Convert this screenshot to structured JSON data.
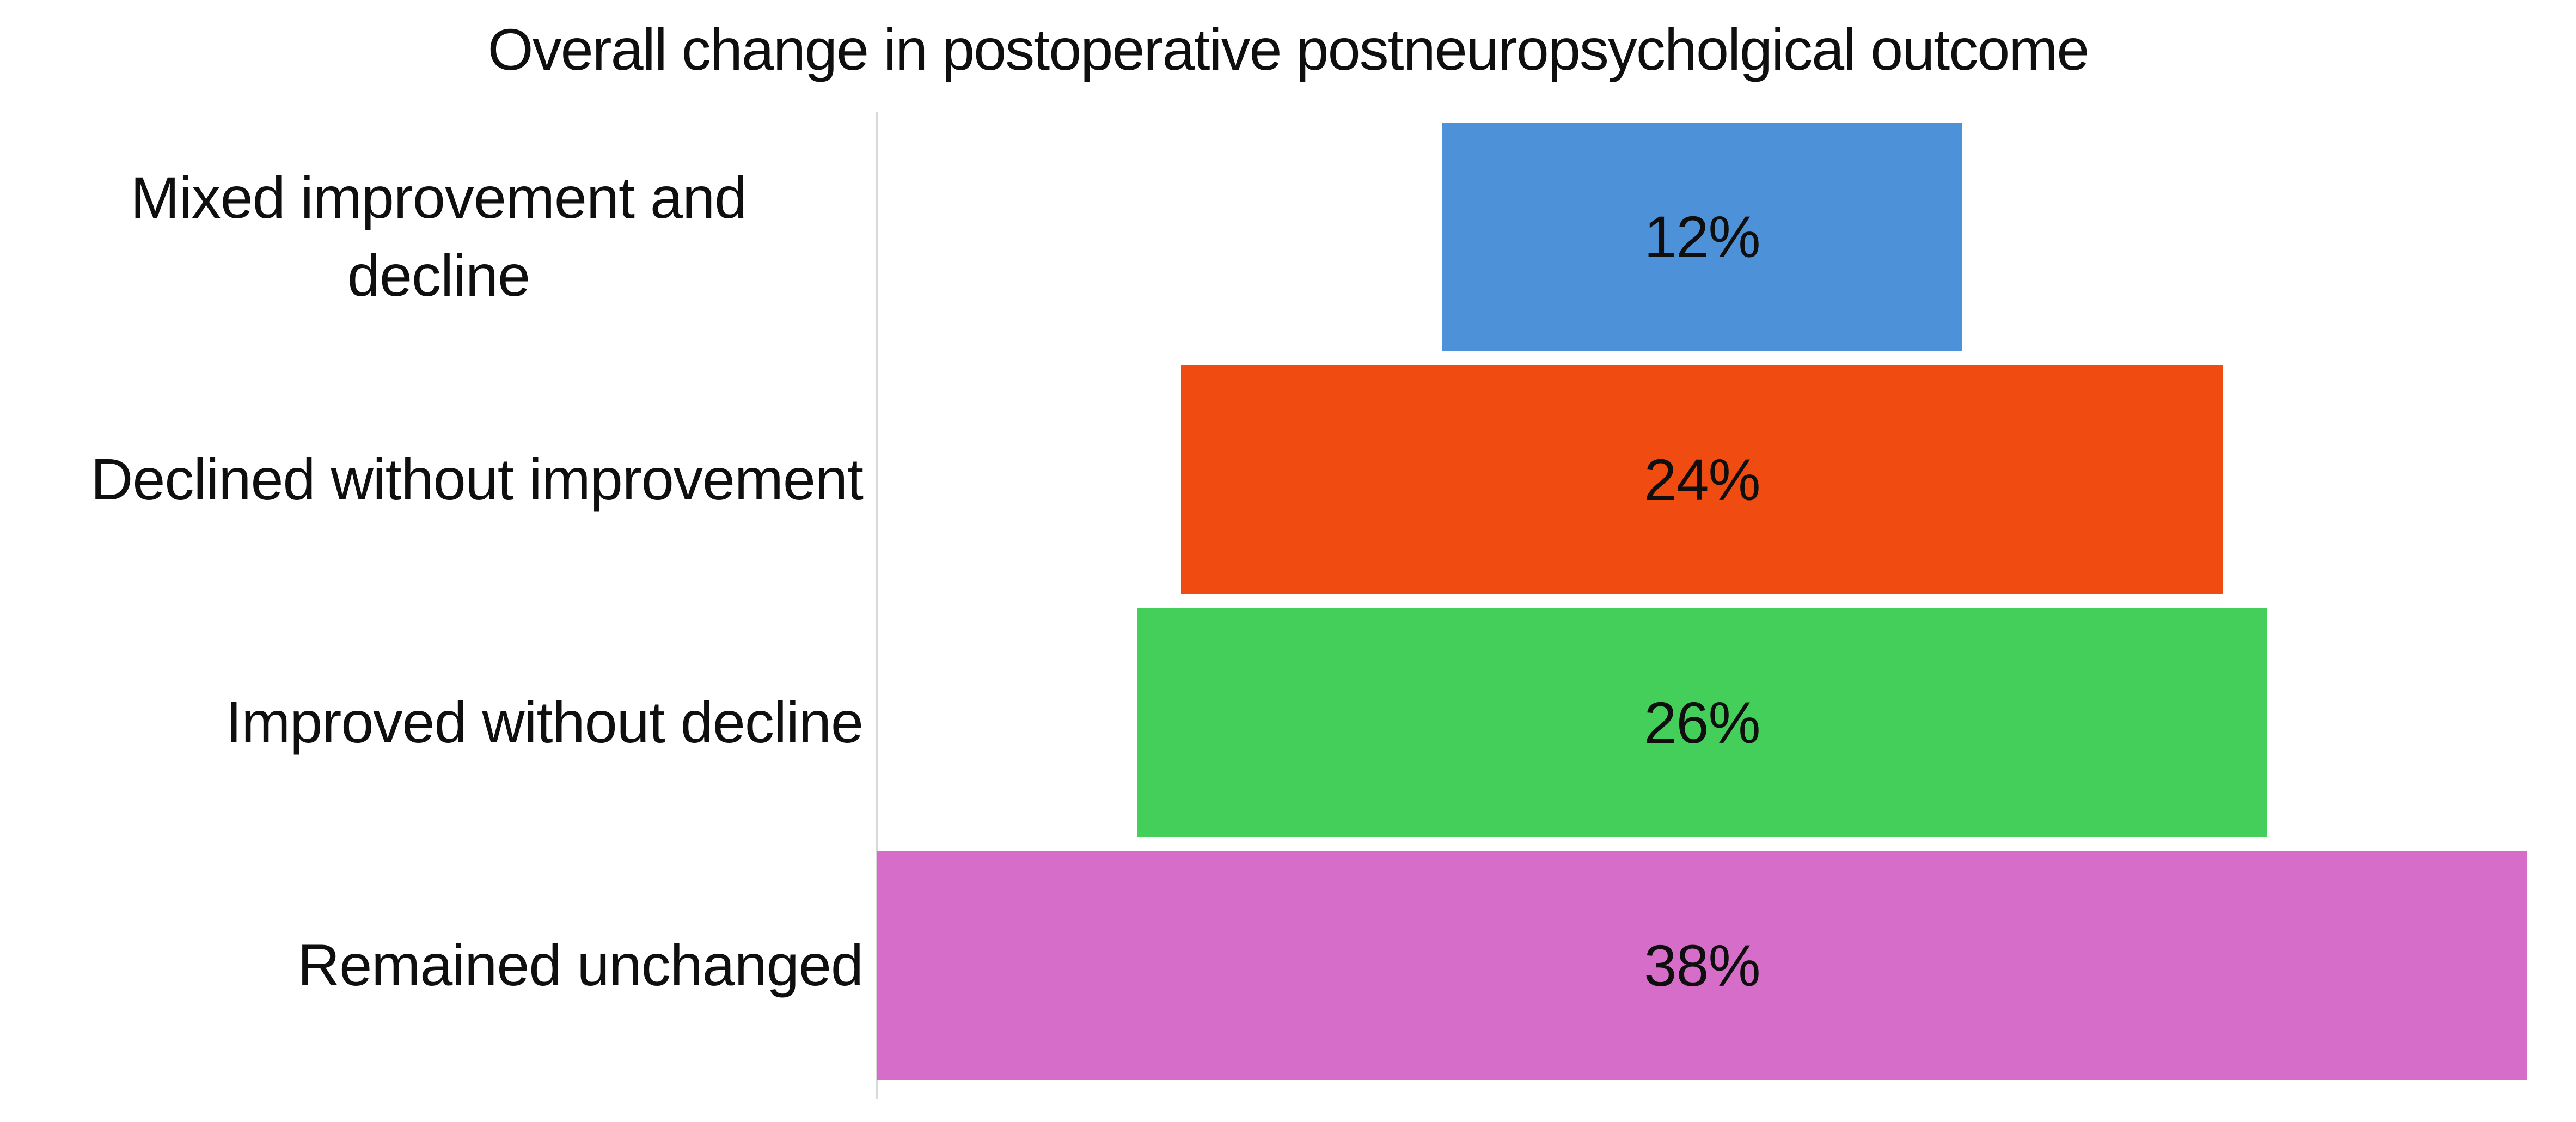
{
  "chart_data": {
    "type": "funnel",
    "title": "Overall change in postoperative postneuropsycholgical outcome",
    "categories": [
      "Mixed improvement and decline",
      "Declined without improvement",
      "Improved without decline",
      "Remained unchanged"
    ],
    "label_lines": [
      [
        "Mixed improvement and",
        "decline"
      ],
      [
        "Declined without improvement"
      ],
      [
        "Improved without decline"
      ],
      [
        "Remained unchanged"
      ]
    ],
    "values": [
      12,
      24,
      26,
      38
    ],
    "value_labels": [
      "12%",
      "24%",
      "26%",
      "38%"
    ],
    "colors": [
      "#4D91D9",
      "#F04B10",
      "#44CE5A",
      "#D66EC9"
    ],
    "axis_color": "#D9D9D9",
    "scale_max_pct": 38,
    "bars_centered": true,
    "legend": "none",
    "grid": "off",
    "value_label_position": "inside-center",
    "text_color": "#0F0F0F",
    "background_color": "#FFFFFF"
  }
}
